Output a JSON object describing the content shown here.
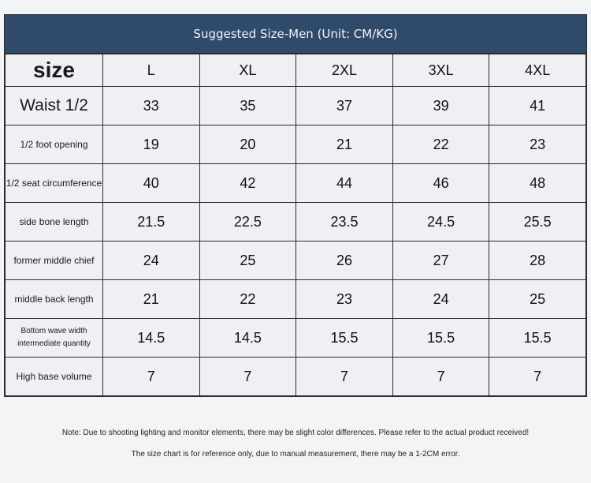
{
  "title": "Suggested Size-Men (Unit: CM/KG)",
  "header": {
    "label": "size",
    "sizes": [
      "L",
      "XL",
      "2XL",
      "3XL",
      "4XL"
    ]
  },
  "rows": [
    {
      "label": "Waist 1/2",
      "values": [
        "33",
        "35",
        "37",
        "39",
        "41"
      ]
    },
    {
      "label": "1/2 foot opening",
      "values": [
        "19",
        "20",
        "21",
        "22",
        "23"
      ]
    },
    {
      "label": "1/2 seat circumference",
      "values": [
        "40",
        "42",
        "44",
        "46",
        "48"
      ]
    },
    {
      "label": "side bone length",
      "values": [
        "21.5",
        "22.5",
        "23.5",
        "24.5",
        "25.5"
      ]
    },
    {
      "label": "former middle chief",
      "values": [
        "24",
        "25",
        "26",
        "27",
        "28"
      ]
    },
    {
      "label": "middle back length",
      "values": [
        "21",
        "22",
        "23",
        "24",
        "25"
      ]
    },
    {
      "label": "Bottom wave width intermediate quantity",
      "values": [
        "14.5",
        "14.5",
        "15.5",
        "15.5",
        "15.5"
      ]
    },
    {
      "label": "High base volume",
      "values": [
        "7",
        "7",
        "7",
        "7",
        "7"
      ]
    }
  ],
  "notes": [
    "Note: Due to shooting lighting and monitor elements, there may be slight color differences. Please refer to the actual product received!",
    "The size chart is for reference only, due to manual measurement, there may be a 1-2CM error."
  ]
}
